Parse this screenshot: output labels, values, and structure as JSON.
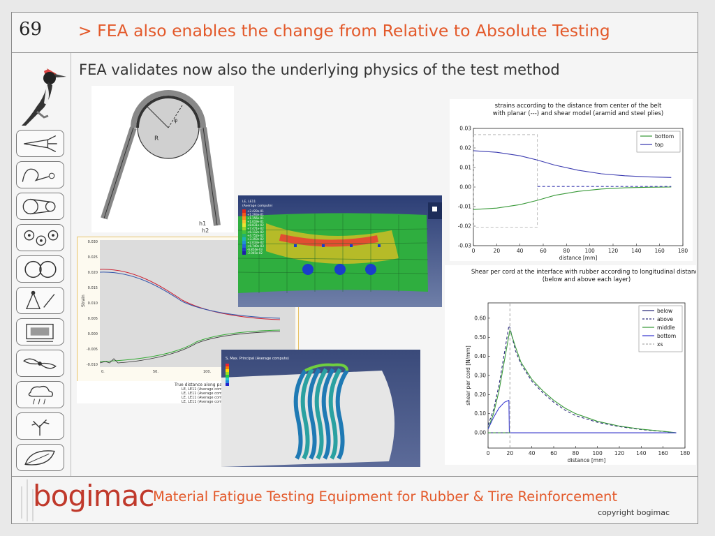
{
  "slide": {
    "number": "69",
    "title": "> FEA also enables the change from Relative to Absolute Testing",
    "subtitle": "FEA validates now also the underlying physics of the test method"
  },
  "footer": {
    "logo": "bogimac",
    "title": "Material Fatigue Testing Equipment for Rubber & Tire Reinforcement",
    "copyright": "copyright bogimac"
  },
  "sidebar_icons": [
    "woodpecker-icon",
    "carrot-icon",
    "cable-icon",
    "belt-drive-icon",
    "roller-set-icon",
    "double-roller-icon",
    "tire-pressure-icon",
    "press-icon",
    "fan-icon",
    "rain-icon",
    "tree-icon",
    "leaf-icon"
  ],
  "pulley_diagram": {
    "labels": [
      "R",
      "φ",
      "h1",
      "h2"
    ]
  },
  "fea_belt": {
    "legend_title": "LE, LE11\n(Average compute)",
    "legend_values": [
      "+2.429e-01",
      "+1.293e-01",
      "+1.156e-01",
      "+1.019e-01",
      "+8.831e-02",
      "+7.471e-02",
      "+6.112e-02",
      "+4.752e-02",
      "+3.393e-02",
      "+2.033e-02",
      "+6.740e-03",
      "-6.854e-03",
      "-2.045e-02"
    ]
  },
  "fea_cords": {
    "legend_title": "S, Max. Principal\n(Average compute)"
  },
  "chart_small": {
    "ylabel": "Strain",
    "xlabel": "True distance along path",
    "yticks": [
      "0.030",
      "0.025",
      "0.020",
      "0.015",
      "0.010",
      "0.005",
      "0.000",
      "-0.005",
      "-0.010"
    ],
    "xticks": [
      "0.",
      "50.",
      "100."
    ],
    "legend": [
      "LE, LE11 (Average compute",
      "LE, LE11 (Average compute",
      "LE, LE11 (Average compute",
      "LE, LE11 (Average compute"
    ]
  },
  "chart_data": [
    {
      "type": "line",
      "title": "strains according to the distance from center of the belt\nwith planar (---) and shear model (aramid and steel plies)",
      "xlabel": "distance [mm]",
      "ylabel": "",
      "xlim": [
        0,
        180
      ],
      "ylim": [
        -0.03,
        0.03
      ],
      "xticks": [
        0,
        20,
        40,
        60,
        80,
        100,
        120,
        140,
        160,
        180
      ],
      "yticks": [
        -0.03,
        -0.02,
        -0.01,
        0.0,
        0.01,
        0.02,
        0.03
      ],
      "legend_position": "top-right",
      "series": [
        {
          "name": "bottom",
          "color": "#3a9a3a",
          "x": [
            0,
            20,
            40,
            55,
            70,
            90,
            110,
            130,
            150,
            170
          ],
          "y": [
            -0.0115,
            -0.0108,
            -0.009,
            -0.0068,
            -0.0042,
            -0.0022,
            -0.001,
            -0.0004,
            -0.0001,
            0.0
          ]
        },
        {
          "name": "top",
          "color": "#3a3ab0",
          "x": [
            0,
            20,
            40,
            55,
            70,
            90,
            110,
            130,
            150,
            170
          ],
          "y": [
            0.0186,
            0.0178,
            0.016,
            0.0138,
            0.0112,
            0.0086,
            0.0068,
            0.0058,
            0.0052,
            0.0049
          ]
        },
        {
          "name": "",
          "color": "#3a3ab0",
          "dashed": true,
          "x": [
            55,
            170
          ],
          "y": [
            0.0003,
            0.0003
          ]
        }
      ],
      "annotations": [
        {
          "type": "dashed-box",
          "color": "#aaaaaa",
          "x": [
            0,
            55
          ],
          "y": [
            -0.0205,
            0.0268
          ]
        }
      ]
    },
    {
      "type": "line",
      "title": "Shear per cord at the interface with rubber according to longitudinal distance\n(below and above each layer)",
      "xlabel": "distance [mm]",
      "ylabel": "shear per cord [N/mm]",
      "xlim": [
        0,
        180
      ],
      "ylim": [
        -0.08,
        0.68
      ],
      "xticks": [
        0,
        20,
        40,
        60,
        80,
        100,
        120,
        140,
        160,
        180
      ],
      "yticks": [
        0.0,
        0.1,
        0.2,
        0.3,
        0.4,
        0.5,
        0.6
      ],
      "legend_position": "top-right",
      "series": [
        {
          "name": "below",
          "color": "#2a2a7a",
          "x": [
            0,
            20,
            172
          ],
          "y": [
            0.0,
            0.0,
            0.0
          ]
        },
        {
          "name": "above",
          "color": "#2a2a7a",
          "dashed": true,
          "x": [
            0,
            5,
            10,
            15,
            19,
            20,
            25,
            30,
            40,
            50,
            60,
            70,
            80,
            100,
            120,
            140,
            160,
            172
          ],
          "y": [
            0.04,
            0.12,
            0.25,
            0.42,
            0.56,
            0.55,
            0.43,
            0.36,
            0.27,
            0.21,
            0.16,
            0.12,
            0.09,
            0.055,
            0.032,
            0.017,
            0.007,
            0.0
          ]
        },
        {
          "name": "middle",
          "color": "#3a9a3a",
          "x": [
            0,
            5,
            10,
            15,
            20,
            25,
            30,
            40,
            50,
            60,
            70,
            80,
            100,
            120,
            140,
            160,
            172
          ],
          "y": [
            0.02,
            0.1,
            0.22,
            0.38,
            0.54,
            0.45,
            0.37,
            0.28,
            0.22,
            0.17,
            0.13,
            0.1,
            0.06,
            0.035,
            0.019,
            0.008,
            0.0
          ]
        },
        {
          "name": "bottom",
          "color": "#3a3ad0",
          "x": [
            0,
            5,
            10,
            15,
            19,
            19.5,
            20,
            172
          ],
          "y": [
            0.02,
            0.08,
            0.13,
            0.16,
            0.17,
            0.0,
            0.0,
            0.0
          ]
        },
        {
          "name": "xs",
          "color": "#aaaaaa",
          "dashed": true,
          "x": [
            20,
            20
          ],
          "y": [
            -0.08,
            0.68
          ]
        },
        {
          "name": "",
          "color": "#3a9a3a",
          "dashed": true,
          "x": [
            0,
            20
          ],
          "y": [
            0.0,
            0.0
          ]
        }
      ]
    }
  ]
}
